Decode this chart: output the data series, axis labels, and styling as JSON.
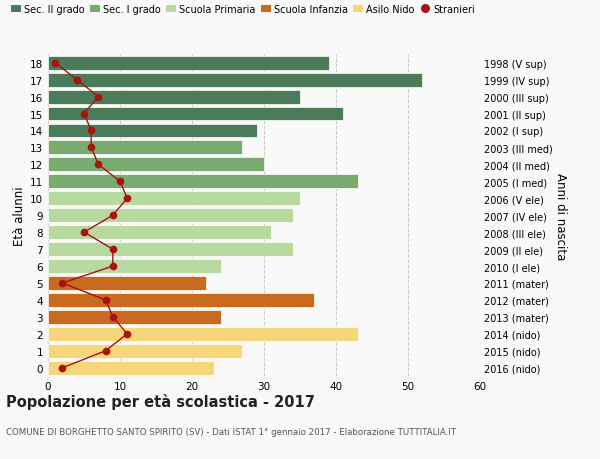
{
  "ages": [
    18,
    17,
    16,
    15,
    14,
    13,
    12,
    11,
    10,
    9,
    8,
    7,
    6,
    5,
    4,
    3,
    2,
    1,
    0
  ],
  "right_labels": [
    "1998 (V sup)",
    "1999 (IV sup)",
    "2000 (III sup)",
    "2001 (II sup)",
    "2002 (I sup)",
    "2003 (III med)",
    "2004 (II med)",
    "2005 (I med)",
    "2006 (V ele)",
    "2007 (IV ele)",
    "2008 (III ele)",
    "2009 (II ele)",
    "2010 (I ele)",
    "2011 (mater)",
    "2012 (mater)",
    "2013 (mater)",
    "2014 (nido)",
    "2015 (nido)",
    "2016 (nido)"
  ],
  "bar_values": [
    39,
    52,
    35,
    41,
    29,
    27,
    30,
    43,
    35,
    34,
    31,
    34,
    24,
    22,
    37,
    24,
    43,
    27,
    23
  ],
  "stranieri": [
    1,
    4,
    7,
    5,
    6,
    6,
    7,
    10,
    11,
    9,
    5,
    9,
    9,
    2,
    8,
    9,
    11,
    8,
    2
  ],
  "bar_colors": [
    "#4a7c59",
    "#4a7c59",
    "#4a7c59",
    "#4a7c59",
    "#4a7c59",
    "#7aab6e",
    "#7aab6e",
    "#7aab6e",
    "#b8d9a0",
    "#b8d9a0",
    "#b8d9a0",
    "#b8d9a0",
    "#b8d9a0",
    "#c96b1e",
    "#c96b1e",
    "#c96b1e",
    "#f5d67a",
    "#f5d67a",
    "#f5d67a"
  ],
  "legend_labels": [
    "Sec. II grado",
    "Sec. I grado",
    "Scuola Primaria",
    "Scuola Infanzia",
    "Asilo Nido",
    "Stranieri"
  ],
  "legend_colors": [
    "#4a7c59",
    "#7aab6e",
    "#b8d9a0",
    "#c96b1e",
    "#f5d67a",
    "#aa1111"
  ],
  "ylabel_left": "Età alunni",
  "ylabel_right": "Anni di nascita",
  "title": "Popolazione per età scolastica - 2017",
  "subtitle": "COMUNE DI BORGHETTO SANTO SPIRITO (SV) - Dati ISTAT 1° gennaio 2017 - Elaborazione TUTTITALIA.IT",
  "xlim": [
    0,
    60
  ],
  "background_color": "#f9f9f9",
  "grid_color": "#cccccc",
  "stranieri_color": "#aa1111"
}
